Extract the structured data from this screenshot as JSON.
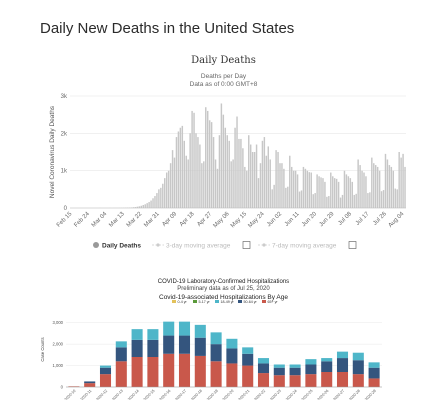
{
  "page": {
    "title": "Daily New Deaths in the United States"
  },
  "chart_data": [
    {
      "type": "bar",
      "title": "Daily Deaths",
      "subtitle": "Deaths per Day",
      "subtitle2": "Data as of 0:00 GMT+8",
      "ylabel": "Novel Coronavirus Daily Deaths",
      "ylim": [
        0,
        3000
      ],
      "yticks": [
        {
          "value": 0,
          "label": "0"
        },
        {
          "value": 1000,
          "label": "1k"
        },
        {
          "value": 2000,
          "label": "2k"
        },
        {
          "value": 3000,
          "label": "3k"
        }
      ],
      "xticks": [
        "Feb 15",
        "Feb 24",
        "Mar 04",
        "Mar 13",
        "Mar 22",
        "Mar 31",
        "Apr 09",
        "Apr 18",
        "Apr 27",
        "May 06",
        "May 15",
        "May 24",
        "Jun 02",
        "Jun 11",
        "Jun 20",
        "Jun 29",
        "Jul 08",
        "Jul 17",
        "Jul 26",
        "Aug 04"
      ],
      "grid": true,
      "legend_position": "bottom",
      "legend": [
        {
          "label": "Daily Deaths",
          "color": "#999999",
          "active": true
        },
        {
          "label": "3-day moving average",
          "color": "#cccccc",
          "active": false
        },
        {
          "label": "7-day moving average",
          "color": "#cccccc",
          "active": false
        }
      ],
      "bar_color": "#c7c7c7",
      "start_date": "2020-02-15",
      "values": [
        0,
        0,
        0,
        0,
        0,
        0,
        0,
        0,
        0,
        0,
        0,
        0,
        0,
        0,
        0,
        1,
        0,
        0,
        0,
        0,
        1,
        0,
        1,
        2,
        1,
        3,
        3,
        5,
        6,
        8,
        10,
        14,
        20,
        25,
        35,
        45,
        60,
        80,
        100,
        130,
        160,
        200,
        260,
        320,
        400,
        500,
        540,
        650,
        800,
        950,
        1000,
        1200,
        1550,
        1350,
        1900,
        2050,
        2150,
        2200,
        1800,
        1400,
        1300,
        2000,
        2600,
        2550,
        2000,
        1900,
        1700,
        1200,
        1250,
        2700,
        2600,
        2350,
        2300,
        1900,
        1300,
        1050,
        1950,
        2800,
        2500,
        2150,
        1950,
        1800,
        1250,
        1300,
        2150,
        2450,
        1850,
        1850,
        1600,
        1100,
        1000,
        1950,
        1700,
        1500,
        1500,
        1700,
        800,
        1200,
        1800,
        1900,
        1400,
        1650,
        1300,
        500,
        620,
        1550,
        1500,
        1200,
        1200,
        1050,
        540,
        570,
        1400,
        1100,
        1000,
        1000,
        900,
        440,
        470,
        1100,
        1050,
        1000,
        960,
        950,
        370,
        400,
        900,
        850,
        820,
        800,
        700,
        300,
        320,
        950,
        850,
        800,
        780,
        700,
        280,
        350,
        1000,
        900,
        850,
        800,
        700,
        350,
        380,
        1300,
        1150,
        1000,
        950,
        850,
        400,
        420,
        1350,
        1200,
        1150,
        1100,
        1000,
        450,
        480,
        1450,
        1300,
        1150,
        1100,
        1000,
        520,
        500,
        1500,
        1350,
        1450,
        1100
      ]
    },
    {
      "type": "bar",
      "stacked": true,
      "title": "COVID-19 Laboratory-Confirmed Hospitalizations",
      "subtitle": "Preliminary data as of Jul 25, 2020",
      "subtitle2": "Covid-19-associated Hospitalizations By Age",
      "ylabel": "Case Counts",
      "ylim": [
        0,
        3500
      ],
      "yticks": [
        0,
        1000,
        2000,
        3000
      ],
      "ytick_labels": [
        "0",
        "1,000",
        "2,000",
        "3,000"
      ],
      "categories": [
        "2020-10",
        "2020-11",
        "2020-12",
        "2020-13",
        "2020-14",
        "2020-15",
        "2020-16",
        "2020-17",
        "2020-18",
        "2020-19",
        "2020-20",
        "2020-21",
        "2020-22",
        "2020-23",
        "2020-24",
        "2020-25",
        "2020-26",
        "2020-27",
        "2020-28",
        "2020-29"
      ],
      "series": [
        {
          "name": "0-4 yr",
          "color": "#e3c25b",
          "values": [
            0,
            0,
            0,
            0,
            0,
            0,
            0,
            0,
            0,
            0,
            0,
            0,
            0,
            0,
            0,
            0,
            0,
            0,
            0,
            0
          ]
        },
        {
          "name": "5-17 yr",
          "color": "#5a9a3a",
          "values": [
            0,
            0,
            0,
            0,
            0,
            0,
            0,
            0,
            0,
            0,
            0,
            0,
            0,
            0,
            0,
            0,
            0,
            0,
            0,
            0
          ]
        },
        {
          "name": "18-49 yr",
          "color": "#4eb6c9",
          "values": [
            0,
            0,
            100,
            280,
            500,
            500,
            650,
            650,
            600,
            550,
            450,
            300,
            250,
            150,
            150,
            250,
            150,
            300,
            350,
            250
          ]
        },
        {
          "name": "50-64 yr",
          "color": "#34557e",
          "values": [
            0,
            80,
            300,
            650,
            800,
            800,
            850,
            850,
            850,
            800,
            700,
            550,
            450,
            350,
            350,
            450,
            500,
            650,
            650,
            500
          ]
        },
        {
          "name": "65+ yr",
          "color": "#c9584b",
          "values": [
            30,
            180,
            600,
            1200,
            1400,
            1400,
            1550,
            1550,
            1450,
            1200,
            1100,
            1000,
            650,
            550,
            550,
            600,
            700,
            700,
            600,
            400
          ]
        }
      ],
      "legend_position": "top"
    }
  ]
}
